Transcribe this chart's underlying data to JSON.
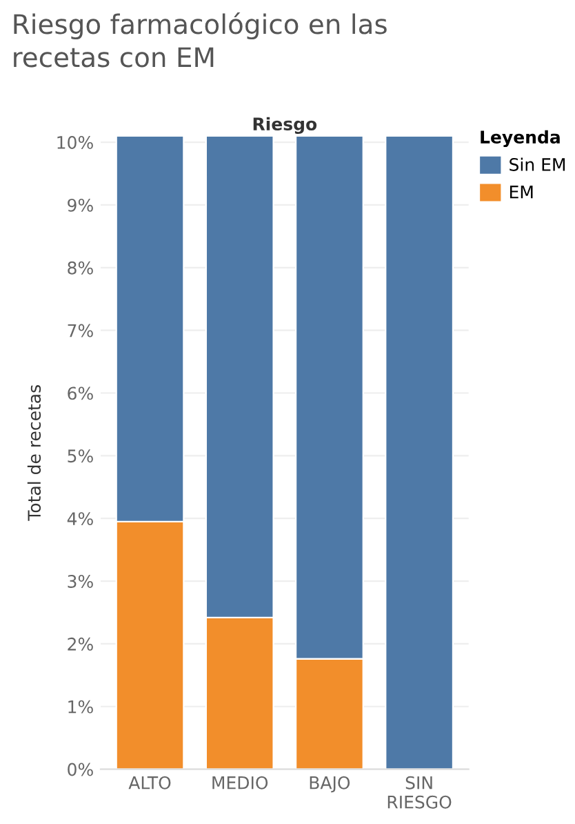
{
  "chart_data": {
    "type": "bar",
    "title": "Riesgo farmacológico en las\nrecetas con EM",
    "subtitle": "Riesgo",
    "ylabel": "Total de recetas",
    "legend_title": "Leyenda",
    "categories": [
      "ALTO",
      "MEDIO",
      "BAJO",
      "SIN\nRIESGO"
    ],
    "series": [
      {
        "name": "EM",
        "color": "#f28e2b",
        "values": [
          3.95,
          2.42,
          1.76,
          0
        ]
      },
      {
        "name": "Sin EM",
        "color": "#4e79a7",
        "values": [
          6.15,
          7.68,
          8.34,
          10.1
        ]
      }
    ],
    "stacked": true,
    "ylim": [
      0,
      10.1
    ],
    "yticks": [
      {
        "value": 0,
        "label": "0%"
      },
      {
        "value": 1,
        "label": "1%"
      },
      {
        "value": 2,
        "label": "2%"
      },
      {
        "value": 3,
        "label": "3%"
      },
      {
        "value": 4,
        "label": "4%"
      },
      {
        "value": 5,
        "label": "5%"
      },
      {
        "value": 6,
        "label": "6%"
      },
      {
        "value": 7,
        "label": "7%"
      },
      {
        "value": 8,
        "label": "8%"
      },
      {
        "value": 9,
        "label": "9%"
      },
      {
        "value": 10,
        "label": "10%"
      }
    ],
    "grid": "y",
    "legend": "top right"
  }
}
